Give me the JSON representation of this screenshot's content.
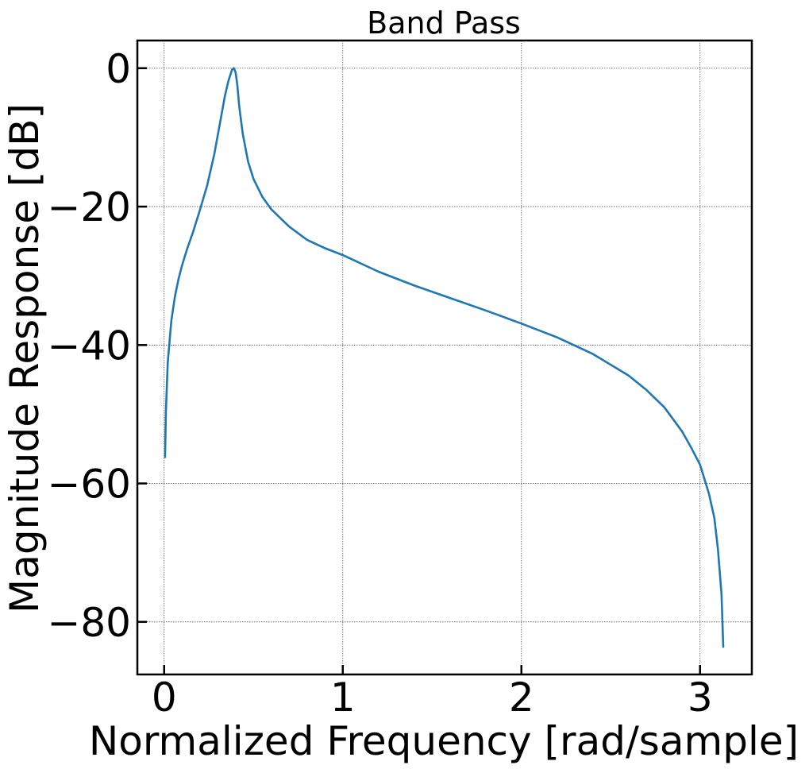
{
  "chart_data": {
    "type": "line",
    "title": "Band Pass",
    "xlabel": "Normalized Frequency [rad/sample]",
    "ylabel": "Magnitude Response [dB]",
    "xlim": [
      -0.15,
      3.29
    ],
    "ylim": [
      -87.6,
      4.0
    ],
    "xticks": [
      0,
      1,
      2,
      3
    ],
    "xtick_labels": [
      "0",
      "1",
      "2",
      "3"
    ],
    "yticks": [
      0,
      -20,
      -40,
      -60,
      -80
    ],
    "ytick_labels": [
      "0",
      "−20",
      "−40",
      "−60",
      "−80"
    ],
    "grid": true,
    "series": [
      {
        "color": "#1f77b4",
        "x": [
          0.005,
          0.01,
          0.02,
          0.04,
          0.06,
          0.08,
          0.1,
          0.13,
          0.16,
          0.2,
          0.24,
          0.28,
          0.31,
          0.34,
          0.36,
          0.38,
          0.39,
          0.4,
          0.41,
          0.42,
          0.44,
          0.47,
          0.5,
          0.55,
          0.6,
          0.7,
          0.8,
          0.9,
          1.0,
          1.2,
          1.4,
          1.6,
          1.8,
          2.0,
          2.2,
          2.4,
          2.6,
          2.7,
          2.8,
          2.9,
          2.95,
          3.0,
          3.05,
          3.08,
          3.1,
          3.12,
          3.13
        ],
        "y": [
          -56.2,
          -49.5,
          -42.5,
          -36.5,
          -33.0,
          -30.5,
          -28.5,
          -26.0,
          -23.8,
          -20.5,
          -17.0,
          -12.5,
          -8.3,
          -4.0,
          -1.8,
          -0.2,
          0.0,
          -0.6,
          -2.5,
          -5.5,
          -9.5,
          -13.5,
          -16.0,
          -18.6,
          -20.4,
          -22.9,
          -24.8,
          -26.0,
          -27.0,
          -29.4,
          -31.4,
          -33.2,
          -35.0,
          -36.9,
          -38.9,
          -41.3,
          -44.4,
          -46.5,
          -49.0,
          -52.5,
          -54.8,
          -57.3,
          -61.5,
          -65.0,
          -69.5,
          -76.0,
          -83.6
        ]
      }
    ]
  }
}
